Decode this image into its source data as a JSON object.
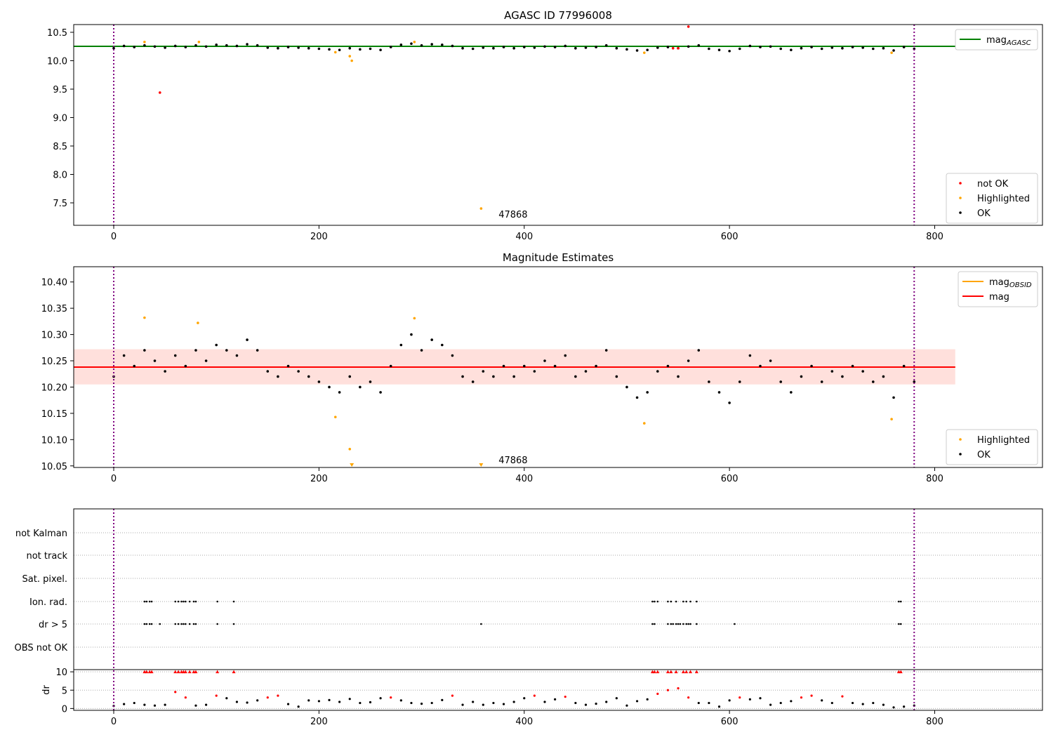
{
  "chart_data": [
    {
      "type": "scatter",
      "title": "AGASC ID 77996008",
      "xlim": [
        -39,
        905
      ],
      "ylim": [
        7.105,
        10.636
      ],
      "xticks": [
        0,
        200,
        400,
        600,
        800
      ],
      "yticks": [
        7.5,
        8.0,
        8.5,
        9.0,
        9.5,
        10.0,
        10.5
      ],
      "ytick_labels": [
        "7.5",
        "8.0",
        "8.5",
        "9.0",
        "9.5",
        "10.0",
        "10.5"
      ],
      "vlines": [
        0,
        780
      ],
      "hline": {
        "label": "mag_AGASC",
        "legend_main": "mag",
        "legend_sub": "AGASC",
        "value": 10.253,
        "x_range": [
          -39,
          820
        ],
        "color": "#008000"
      },
      "annotation": {
        "text": "47868",
        "x": 375,
        "y": 7.3
      },
      "legend_upper": "top-right",
      "legend_lower": "bottom-right",
      "series": [
        {
          "name": "not OK",
          "color": "#ff0000",
          "points": [
            [
              45,
              9.44
            ],
            [
              560,
              10.6
            ],
            [
              545,
              10.22
            ],
            [
              550,
              10.22
            ]
          ]
        },
        {
          "name": "Highlighted",
          "color": "#ffa500",
          "points": [
            [
              30,
              10.33
            ],
            [
              83,
              10.33
            ],
            [
              293,
              10.33
            ],
            [
              216,
              10.15
            ],
            [
              230,
              10.08
            ],
            [
              232,
              10.0
            ],
            [
              358,
              7.4
            ],
            [
              517,
              10.14
            ],
            [
              758,
              10.14
            ]
          ]
        },
        {
          "name": "OK",
          "color": "#000000",
          "x_start": 0,
          "x_step": 10,
          "values": [
            10.22,
            10.26,
            10.24,
            10.27,
            10.25,
            10.23,
            10.26,
            10.24,
            10.27,
            10.25,
            10.28,
            10.27,
            10.26,
            10.29,
            10.27,
            10.23,
            10.22,
            10.24,
            10.23,
            10.22,
            10.21,
            10.2,
            10.19,
            10.22,
            10.2,
            10.21,
            10.19,
            10.24,
            10.28,
            10.3,
            10.27,
            10.29,
            10.28,
            10.26,
            10.22,
            10.21,
            10.23,
            10.22,
            10.24,
            10.22,
            10.24,
            10.23,
            10.25,
            10.24,
            10.26,
            10.22,
            10.23,
            10.24,
            10.27,
            10.22,
            10.2,
            10.18,
            10.19,
            10.23,
            10.24,
            10.22,
            10.25,
            10.27,
            10.21,
            10.19,
            10.17,
            10.21,
            10.26,
            10.24,
            10.25,
            10.21,
            10.19,
            10.22,
            10.24,
            10.21,
            10.23,
            10.22,
            10.24,
            10.23,
            10.21,
            10.22,
            10.18,
            10.24,
            10.21
          ]
        }
      ]
    },
    {
      "type": "scatter",
      "title": "Magnitude Estimates",
      "xlim": [
        -39,
        905
      ],
      "ylim": [
        10.047,
        10.429
      ],
      "xticks": [
        0,
        200,
        400,
        600,
        800
      ],
      "yticks": [
        10.05,
        10.1,
        10.15,
        10.2,
        10.25,
        10.3,
        10.35,
        10.4
      ],
      "ytick_labels": [
        "10.05",
        "10.10",
        "10.15",
        "10.20",
        "10.25",
        "10.30",
        "10.35",
        "10.40"
      ],
      "vlines": [
        0,
        780
      ],
      "band": {
        "low": 10.205,
        "high": 10.272,
        "x_range": [
          -39,
          820
        ]
      },
      "lines": [
        {
          "label": "mag_OBSID",
          "legend_main": "mag",
          "legend_sub": "OBSID",
          "color": "#ffa500",
          "value": 10.238
        },
        {
          "label": "mag",
          "legend_main": "mag",
          "legend_sub": "",
          "color": "#ff0000",
          "value": 10.238
        }
      ],
      "annotation": {
        "text": "47868",
        "x": 375,
        "y": 10.062
      },
      "series": [
        {
          "name": "Highlighted",
          "color": "#ffa500",
          "points": [
            [
              30,
              10.332
            ],
            [
              82,
              10.322
            ],
            [
              293,
              10.331
            ],
            [
              216,
              10.143
            ],
            [
              230,
              10.082
            ],
            [
              517,
              10.131
            ],
            [
              758,
              10.139
            ]
          ],
          "off_scale_points": [
            232,
            358
          ]
        },
        {
          "name": "OK",
          "color": "#000000",
          "x_start": 0,
          "x_step": 10,
          "values": [
            10.22,
            10.26,
            10.24,
            10.27,
            10.25,
            10.23,
            10.26,
            10.24,
            10.27,
            10.25,
            10.28,
            10.27,
            10.26,
            10.29,
            10.27,
            10.23,
            10.22,
            10.24,
            10.23,
            10.22,
            10.21,
            10.2,
            10.19,
            10.22,
            10.2,
            10.21,
            10.19,
            10.24,
            10.28,
            10.3,
            10.27,
            10.29,
            10.28,
            10.26,
            10.22,
            10.21,
            10.23,
            10.22,
            10.24,
            10.22,
            10.24,
            10.23,
            10.25,
            10.24,
            10.26,
            10.22,
            10.23,
            10.24,
            10.27,
            10.22,
            10.2,
            10.18,
            10.19,
            10.23,
            10.24,
            10.22,
            10.25,
            10.27,
            10.21,
            10.19,
            10.17,
            10.21,
            10.26,
            10.24,
            10.25,
            10.21,
            10.19,
            10.22,
            10.24,
            10.21,
            10.23,
            10.22,
            10.24,
            10.23,
            10.21,
            10.22,
            10.18,
            10.24,
            10.21
          ]
        }
      ]
    },
    {
      "type": "scatter",
      "title": "",
      "xlim": [
        -39,
        905
      ],
      "xticks": [
        0,
        200,
        400,
        600,
        800
      ],
      "vlines": [
        0,
        780
      ],
      "flag_rows": [
        "not Kalman",
        "not track",
        "Sat. pixel.",
        "Ion. rad.",
        "dr > 5",
        "OBS not OK"
      ],
      "flags": {
        "Ion. rad.": [
          30,
          32,
          35,
          37,
          60,
          63,
          66,
          68,
          70,
          74,
          78,
          80,
          101,
          117,
          525,
          527,
          530,
          540,
          543,
          548,
          555,
          558,
          562,
          568,
          765,
          767
        ],
        "dr > 5": [
          30,
          32,
          35,
          37,
          45,
          60,
          63,
          66,
          68,
          70,
          74,
          78,
          80,
          101,
          117,
          358,
          525,
          527,
          540,
          543,
          545,
          548,
          550,
          552,
          555,
          558,
          560,
          562,
          568,
          605,
          765,
          767
        ]
      },
      "dr": {
        "ylabel": "dr",
        "ylim": [
          -0.5,
          10.6
        ],
        "yticks": [
          0,
          5,
          10
        ],
        "ytick_labels": [
          "0",
          "5",
          "10"
        ],
        "x_start": 0,
        "x_step": 10,
        "values": [
          0.7,
          1.2,
          1.5,
          1.0,
          0.8,
          1.0,
          4.5,
          3.0,
          0.8,
          1.0,
          3.5,
          2.8,
          1.8,
          1.6,
          2.2,
          3.0,
          3.5,
          1.2,
          0.5,
          2.2,
          2.0,
          2.3,
          1.8,
          2.6,
          1.5,
          1.7,
          2.8,
          3.0,
          2.2,
          1.5,
          1.3,
          1.5,
          2.3,
          3.5,
          1.0,
          1.8,
          1.0,
          1.5,
          1.2,
          1.8,
          2.8,
          3.5,
          1.8,
          2.5,
          3.2,
          1.5,
          1.0,
          1.3,
          1.8,
          2.8,
          0.8,
          2.0,
          2.5,
          4.0,
          5.0,
          5.5,
          3.0,
          1.5,
          1.5,
          0.5,
          2.2,
          3.0,
          2.5,
          2.8,
          1.0,
          1.5,
          2.0,
          3.0,
          3.5,
          2.2,
          1.5,
          3.3,
          1.5,
          1.2,
          1.5,
          1.0,
          0.3,
          0.5,
          0.8
        ],
        "capped_at_10": [
          30,
          32,
          35,
          37,
          60,
          63,
          66,
          68,
          70,
          74,
          78,
          80,
          101,
          117,
          525,
          527,
          530,
          540,
          543,
          548,
          555,
          558,
          562,
          568,
          765,
          767
        ],
        "red_threshold": 3
      }
    }
  ]
}
